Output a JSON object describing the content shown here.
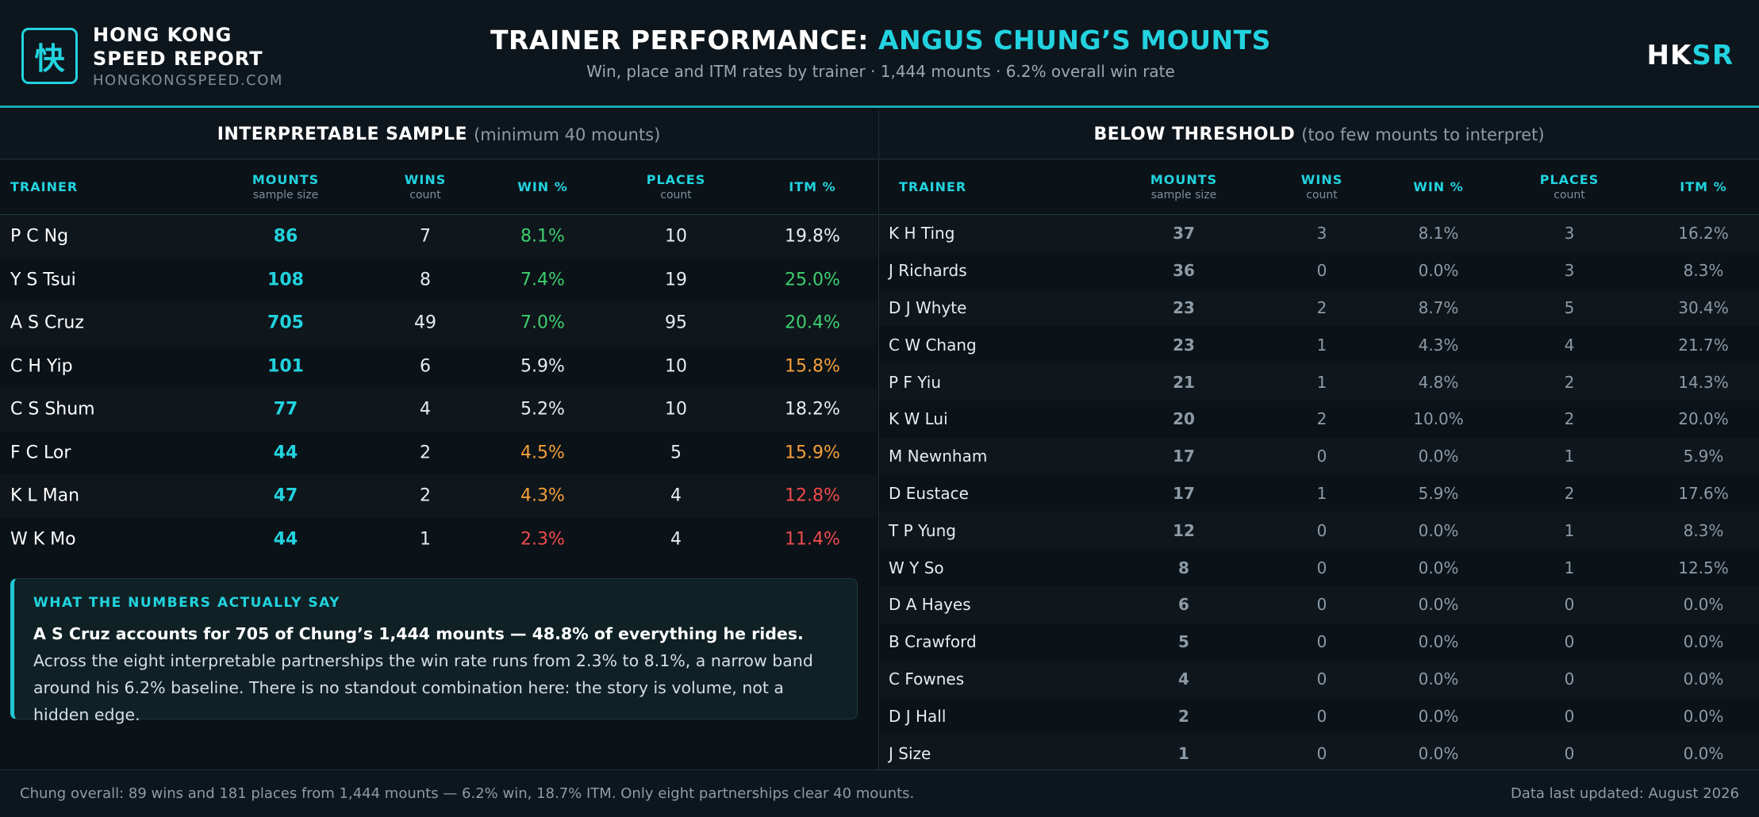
{
  "brand": {
    "logo_glyph": "快",
    "line1": "HONG KONG",
    "line2": "SPEED REPORT",
    "url": "HONGKONGSPEED.COM",
    "mark_a": "HK",
    "mark_b": "SR"
  },
  "header": {
    "title_prefix": "TRAINER PERFORMANCE: ",
    "title_accent": "ANGUS CHUNG’S MOUNTS",
    "subtitle": "Win, place and ITM rates by trainer · 1,444 mounts · 6.2% overall win rate"
  },
  "columns": {
    "trainer": "TRAINER",
    "mounts": "MOUNTS",
    "mounts_sub": "sample size",
    "wins": "WINS",
    "wins_sub": "count",
    "win_pct": "WIN %",
    "places": "PLACES",
    "places_sub": "count",
    "itm_pct": "ITM %"
  },
  "left_panel": {
    "title": "INTERPRETABLE SAMPLE",
    "subtitle": "(minimum 40 mounts)",
    "rows": [
      {
        "trainer": "P C Ng",
        "mounts": "86",
        "wins": "7",
        "win_pct": "8.1%",
        "win_color": "green",
        "places": "10",
        "itm_pct": "19.8%",
        "itm_color": "white"
      },
      {
        "trainer": "Y S Tsui",
        "mounts": "108",
        "wins": "8",
        "win_pct": "7.4%",
        "win_color": "green",
        "places": "19",
        "itm_pct": "25.0%",
        "itm_color": "green"
      },
      {
        "trainer": "A S Cruz",
        "mounts": "705",
        "wins": "49",
        "win_pct": "7.0%",
        "win_color": "green",
        "places": "95",
        "itm_pct": "20.4%",
        "itm_color": "green"
      },
      {
        "trainer": "C H Yip",
        "mounts": "101",
        "wins": "6",
        "win_pct": "5.9%",
        "win_color": "white",
        "places": "10",
        "itm_pct": "15.8%",
        "itm_color": "orange"
      },
      {
        "trainer": "C S Shum",
        "mounts": "77",
        "wins": "4",
        "win_pct": "5.2%",
        "win_color": "white",
        "places": "10",
        "itm_pct": "18.2%",
        "itm_color": "white"
      },
      {
        "trainer": "F C Lor",
        "mounts": "44",
        "wins": "2",
        "win_pct": "4.5%",
        "win_color": "orange",
        "places": "5",
        "itm_pct": "15.9%",
        "itm_color": "orange"
      },
      {
        "trainer": "K L Man",
        "mounts": "47",
        "wins": "2",
        "win_pct": "4.3%",
        "win_color": "orange",
        "places": "4",
        "itm_pct": "12.8%",
        "itm_color": "red"
      },
      {
        "trainer": "W K Mo",
        "mounts": "44",
        "wins": "1",
        "win_pct": "2.3%",
        "win_color": "red",
        "places": "4",
        "itm_pct": "11.4%",
        "itm_color": "red"
      }
    ]
  },
  "right_panel": {
    "title": "BELOW THRESHOLD",
    "subtitle": "(too few mounts to interpret)",
    "rows": [
      {
        "trainer": "K H Ting",
        "mounts": "37",
        "wins": "3",
        "win_pct": "8.1%",
        "places": "3",
        "itm_pct": "16.2%"
      },
      {
        "trainer": "J Richards",
        "mounts": "36",
        "wins": "0",
        "win_pct": "0.0%",
        "places": "3",
        "itm_pct": "8.3%"
      },
      {
        "trainer": "D J Whyte",
        "mounts": "23",
        "wins": "2",
        "win_pct": "8.7%",
        "places": "5",
        "itm_pct": "30.4%"
      },
      {
        "trainer": "C W Chang",
        "mounts": "23",
        "wins": "1",
        "win_pct": "4.3%",
        "places": "4",
        "itm_pct": "21.7%"
      },
      {
        "trainer": "P F Yiu",
        "mounts": "21",
        "wins": "1",
        "win_pct": "4.8%",
        "places": "2",
        "itm_pct": "14.3%"
      },
      {
        "trainer": "K W Lui",
        "mounts": "20",
        "wins": "2",
        "win_pct": "10.0%",
        "places": "2",
        "itm_pct": "20.0%"
      },
      {
        "trainer": "M Newnham",
        "mounts": "17",
        "wins": "0",
        "win_pct": "0.0%",
        "places": "1",
        "itm_pct": "5.9%"
      },
      {
        "trainer": "D Eustace",
        "mounts": "17",
        "wins": "1",
        "win_pct": "5.9%",
        "places": "2",
        "itm_pct": "17.6%"
      },
      {
        "trainer": "T P Yung",
        "mounts": "12",
        "wins": "0",
        "win_pct": "0.0%",
        "places": "1",
        "itm_pct": "8.3%"
      },
      {
        "trainer": "W Y So",
        "mounts": "8",
        "wins": "0",
        "win_pct": "0.0%",
        "places": "1",
        "itm_pct": "12.5%"
      },
      {
        "trainer": "D A Hayes",
        "mounts": "6",
        "wins": "0",
        "win_pct": "0.0%",
        "places": "0",
        "itm_pct": "0.0%"
      },
      {
        "trainer": "B Crawford",
        "mounts": "5",
        "wins": "0",
        "win_pct": "0.0%",
        "places": "0",
        "itm_pct": "0.0%"
      },
      {
        "trainer": "C Fownes",
        "mounts": "4",
        "wins": "0",
        "win_pct": "0.0%",
        "places": "0",
        "itm_pct": "0.0%"
      },
      {
        "trainer": "D J Hall",
        "mounts": "2",
        "wins": "0",
        "win_pct": "0.0%",
        "places": "0",
        "itm_pct": "0.0%"
      },
      {
        "trainer": "J Size",
        "mounts": "1",
        "wins": "0",
        "win_pct": "0.0%",
        "places": "0",
        "itm_pct": "0.0%"
      }
    ]
  },
  "insight": {
    "title": "WHAT THE NUMBERS ACTUALLY SAY",
    "lead": "A S Cruz accounts for 705 of Chung’s 1,444 mounts — 48.8% of everything he rides.",
    "body": " Across the eight interpretable partnerships the win rate runs from 2.3% to 8.1%, a narrow band around his 6.2% baseline. There is no standout combination here: the story is volume, not a hidden edge."
  },
  "footer": {
    "left": "Chung overall: 89 wins and 181 places from 1,444 mounts — 6.2% win, 18.7% ITM. Only eight partnerships clear 40 mounts.",
    "right": "Data last updated: August 2026"
  },
  "colors": {
    "accent": "#22d3df",
    "green": "#3ecf6e",
    "orange": "#f5a03a",
    "red": "#ee4b4b"
  }
}
